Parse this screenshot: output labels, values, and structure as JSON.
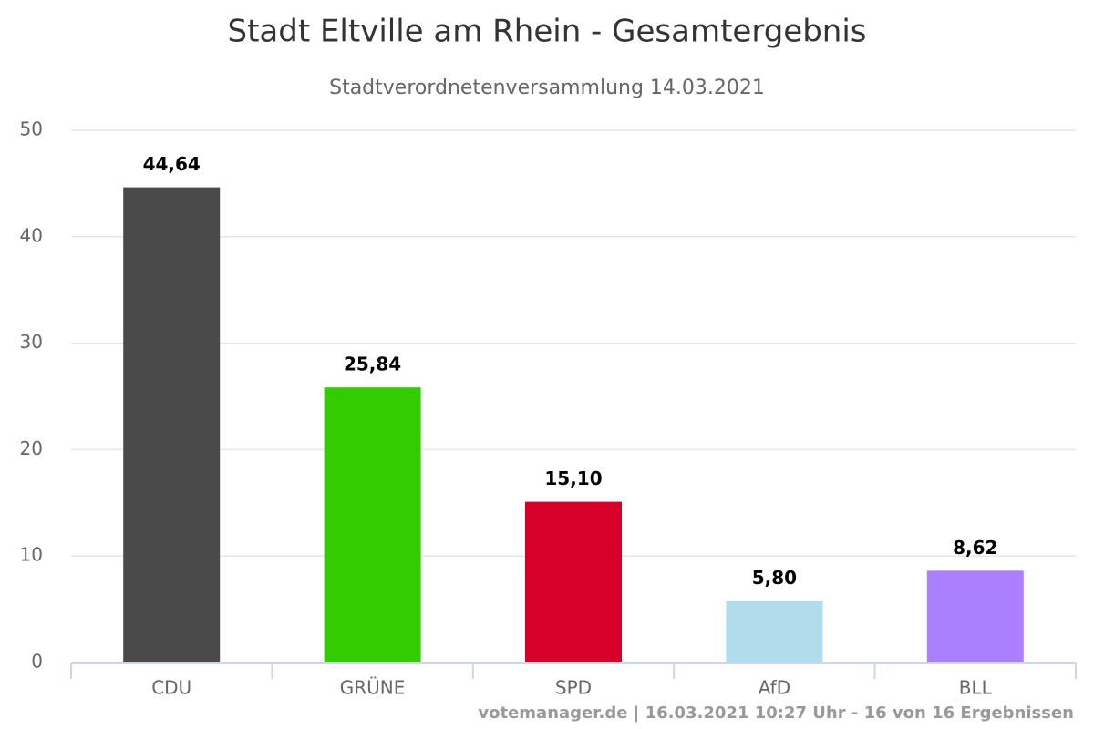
{
  "chart_data": {
    "type": "bar",
    "title": "Stadt Eltville am Rhein - Gesamtergebnis",
    "subtitle": "Stadtverordnetenversammlung 14.03.2021",
    "categories": [
      "CDU",
      "GRÜNE",
      "SPD",
      "AfD",
      "BLL"
    ],
    "values": [
      44.64,
      25.84,
      15.1,
      5.8,
      8.62
    ],
    "value_labels": [
      "44,64",
      "25,84",
      "15,10",
      "5,80",
      "8,62"
    ],
    "colors": [
      "#4a4a4a",
      "#33cc00",
      "#d7002a",
      "#b0dcec",
      "#aa80ff"
    ],
    "ylim": [
      0,
      50
    ],
    "yticks": [
      0,
      10,
      20,
      30,
      40,
      50
    ],
    "grid": true,
    "credits": "votemanager.de | 16.03.2021 10:27 Uhr - 16 von 16 Ergebnissen"
  }
}
